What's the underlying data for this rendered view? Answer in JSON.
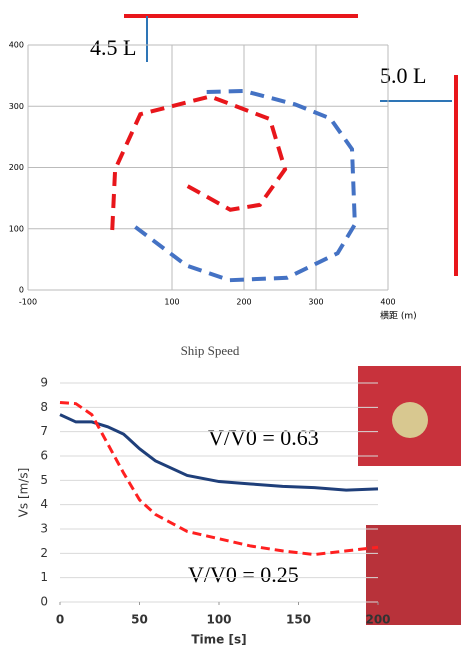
{
  "chart_data": [
    {
      "type": "trajectory",
      "xlabel": "横距 (m)",
      "xlim": [
        -100,
        400
      ],
      "ylim": [
        0,
        400
      ],
      "xticks": [
        -100,
        100,
        200,
        300,
        400
      ],
      "yticks": [
        0,
        100,
        200,
        300,
        400
      ],
      "grid": true,
      "annotations": [
        "4.5 L",
        "5.0 L"
      ],
      "series": [
        {
          "color": "#4472c4",
          "style": "dashed",
          "x": [
            49,
            120,
            180,
            260,
            330,
            354,
            350,
            320,
            271,
            200,
            139
          ],
          "values": [
            103,
            40,
            16,
            20,
            60,
            107,
            230,
            280,
            303,
            325,
            323
          ]
        },
        {
          "color": "#e8161b",
          "style": "dashed",
          "x": [
            17,
            21,
            56,
            153,
            236,
            257,
            222,
            181,
            118
          ],
          "values": [
            98,
            197,
            287,
            316,
            279,
            197,
            139,
            131,
            172
          ]
        }
      ]
    },
    {
      "type": "line",
      "title": "Ship Speed",
      "xlabel": "Time [s]",
      "ylabel": "Vs [m/s]",
      "xlim": [
        0,
        200
      ],
      "ylim": [
        0,
        9
      ],
      "xticks": [
        0,
        50,
        100,
        150,
        200
      ],
      "yticks": [
        0,
        1,
        2,
        3,
        4,
        5,
        6,
        7,
        8,
        9
      ],
      "grid": true,
      "annotations": [
        "V/V0 = 0.63",
        "V/V0 = 0.25"
      ],
      "x": [
        0,
        10,
        20,
        30,
        40,
        50,
        60,
        80,
        100,
        120,
        140,
        160,
        180,
        200
      ],
      "series": [
        {
          "color": "#1f3f7a",
          "style": "solid",
          "values": [
            7.7,
            7.4,
            7.4,
            7.2,
            6.9,
            6.3,
            5.8,
            5.2,
            4.95,
            4.85,
            4.75,
            4.7,
            4.6,
            4.65
          ]
        },
        {
          "color": "#ff2020",
          "style": "dashed",
          "values": [
            8.2,
            8.15,
            7.7,
            6.5,
            5.3,
            4.2,
            3.6,
            2.9,
            2.6,
            2.3,
            2.1,
            1.95,
            2.1,
            2.25
          ]
        }
      ]
    }
  ]
}
